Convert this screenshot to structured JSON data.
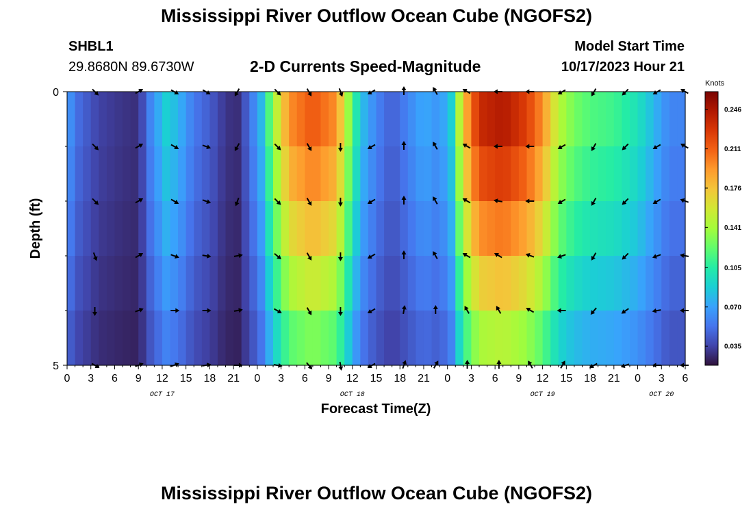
{
  "page": {
    "title": "Mississippi River Outflow Ocean Cube (NGOFS2)",
    "station_id": "SHBL1",
    "station_coords": "29.8680N  89.6730W",
    "subtitle": "2-D Currents Speed-Magnitude",
    "model_start_label": "Model Start Time",
    "model_start_value": "10/17/2023 Hour 21",
    "repeat_title": "Mississippi River Outflow Ocean Cube (NGOFS2)"
  },
  "chart_data": {
    "type": "heatmap",
    "xlabel": "Forecast Time(Z)",
    "ylabel": "Depth (ft)",
    "colorbar_label": "Knots",
    "x_start_hour": 0,
    "x_end_hour": 78,
    "x_tick_step_hours": 3,
    "x_tick_labels": [
      "0",
      "3",
      "6",
      "9",
      "12",
      "15",
      "18",
      "21",
      "0",
      "3",
      "6",
      "9",
      "12",
      "15",
      "18",
      "21",
      "0",
      "3",
      "6",
      "9",
      "12",
      "15",
      "18",
      "21",
      "0",
      "3",
      "6"
    ],
    "date_labels": [
      {
        "label": "OCT 17",
        "hour": 12
      },
      {
        "label": "OCT 18",
        "hour": 36
      },
      {
        "label": "OCT 19",
        "hour": 60
      },
      {
        "label": "OCT 20",
        "hour": 75
      }
    ],
    "y_tick_labels": [
      "0",
      "5"
    ],
    "y_range": [
      0,
      5
    ],
    "colorbar_ticks": [
      0.035,
      0.07,
      0.105,
      0.141,
      0.176,
      0.211,
      0.246
    ],
    "colorbar_range": [
      0.018,
      0.262
    ],
    "depth_layers": 5,
    "speed_profile": [
      {
        "hour": 0,
        "speed": 0.07
      },
      {
        "hour": 1.5,
        "speed": 0.05
      },
      {
        "hour": 4,
        "speed": 0.035
      },
      {
        "hour": 7,
        "speed": 0.03
      },
      {
        "hour": 9,
        "speed": 0.028
      },
      {
        "hour": 10.5,
        "speed": 0.06
      },
      {
        "hour": 12.5,
        "speed": 0.09
      },
      {
        "hour": 14,
        "speed": 0.08
      },
      {
        "hour": 16,
        "speed": 0.055
      },
      {
        "hour": 18,
        "speed": 0.045
      },
      {
        "hour": 20,
        "speed": 0.03
      },
      {
        "hour": 21.5,
        "speed": 0.028
      },
      {
        "hour": 23,
        "speed": 0.05
      },
      {
        "hour": 24.5,
        "speed": 0.08
      },
      {
        "hour": 26,
        "speed": 0.14
      },
      {
        "hour": 28,
        "speed": 0.2
      },
      {
        "hour": 31,
        "speed": 0.22
      },
      {
        "hour": 34,
        "speed": 0.2
      },
      {
        "hour": 35.5,
        "speed": 0.14
      },
      {
        "hour": 37,
        "speed": 0.085
      },
      {
        "hour": 39,
        "speed": 0.06
      },
      {
        "hour": 41,
        "speed": 0.045
      },
      {
        "hour": 43,
        "speed": 0.06
      },
      {
        "hour": 45,
        "speed": 0.075
      },
      {
        "hour": 47,
        "speed": 0.065
      },
      {
        "hour": 48.5,
        "speed": 0.09
      },
      {
        "hour": 50,
        "speed": 0.18
      },
      {
        "hour": 52,
        "speed": 0.24
      },
      {
        "hour": 55,
        "speed": 0.25
      },
      {
        "hour": 58,
        "speed": 0.23
      },
      {
        "hour": 60,
        "speed": 0.2
      },
      {
        "hour": 62,
        "speed": 0.15
      },
      {
        "hour": 64,
        "speed": 0.13
      },
      {
        "hour": 66,
        "speed": 0.12
      },
      {
        "hour": 69,
        "speed": 0.115
      },
      {
        "hour": 72,
        "speed": 0.1
      },
      {
        "hour": 74,
        "speed": 0.08
      },
      {
        "hour": 76,
        "speed": 0.06
      },
      {
        "hour": 78,
        "speed": 0.06
      }
    ],
    "depth_factors": [
      1.0,
      0.95,
      0.85,
      0.75,
      0.62,
      0.5
    ],
    "vectors": [
      {
        "hour": 3.5,
        "dirs": [
          135,
          135,
          135,
          160,
          180,
          120
        ]
      },
      {
        "hour": 9,
        "dirs": [
          60,
          60,
          60,
          60,
          70,
          70
        ]
      },
      {
        "hour": 13.5,
        "dirs": [
          120,
          120,
          120,
          110,
          90,
          70
        ]
      },
      {
        "hour": 17.5,
        "dirs": [
          120,
          110,
          110,
          100,
          90,
          80
        ]
      },
      {
        "hour": 21.5,
        "dirs": [
          210,
          210,
          200,
          80,
          80,
          90
        ]
      },
      {
        "hour": 26.5,
        "dirs": [
          135,
          135,
          135,
          130,
          120,
          100
        ]
      },
      {
        "hour": 30.5,
        "dirs": [
          150,
          150,
          150,
          150,
          150,
          140
        ]
      },
      {
        "hour": 34.5,
        "dirs": [
          160,
          180,
          180,
          180,
          180,
          170
        ]
      },
      {
        "hour": 38.5,
        "dirs": [
          240,
          240,
          240,
          240,
          240,
          240
        ]
      },
      {
        "hour": 42.5,
        "dirs": [
          0,
          0,
          0,
          0,
          10,
          20
        ]
      },
      {
        "hour": 46.5,
        "dirs": [
          330,
          330,
          330,
          330,
          0,
          30
        ]
      },
      {
        "hour": 50.5,
        "dirs": [
          300,
          300,
          300,
          300,
          330,
          0
        ]
      },
      {
        "hour": 54.5,
        "dirs": [
          270,
          270,
          280,
          300,
          330,
          0
        ]
      },
      {
        "hour": 58.5,
        "dirs": [
          270,
          270,
          270,
          290,
          300,
          330
        ]
      },
      {
        "hour": 62.5,
        "dirs": [
          240,
          240,
          240,
          250,
          270,
          30
        ]
      },
      {
        "hour": 66.5,
        "dirs": [
          210,
          210,
          210,
          210,
          220,
          240
        ]
      },
      {
        "hour": 70.5,
        "dirs": [
          225,
          225,
          225,
          225,
          235,
          250
        ]
      },
      {
        "hour": 74.5,
        "dirs": [
          240,
          240,
          240,
          250,
          260,
          270
        ]
      },
      {
        "hour": 78,
        "dirs": [
          300,
          300,
          290,
          280,
          270,
          270
        ]
      }
    ],
    "colors": {
      "plot_border": "#000000",
      "vector": "#000000"
    },
    "colormap_stops": [
      "#30123b",
      "#4145ab",
      "#4675ed",
      "#39a2fc",
      "#1bcfd4",
      "#24eca6",
      "#61fc6c",
      "#a4fc3b",
      "#d1e834",
      "#f3c63a",
      "#fe9b2d",
      "#f36315",
      "#d93806",
      "#b11901",
      "#7a0402"
    ]
  }
}
